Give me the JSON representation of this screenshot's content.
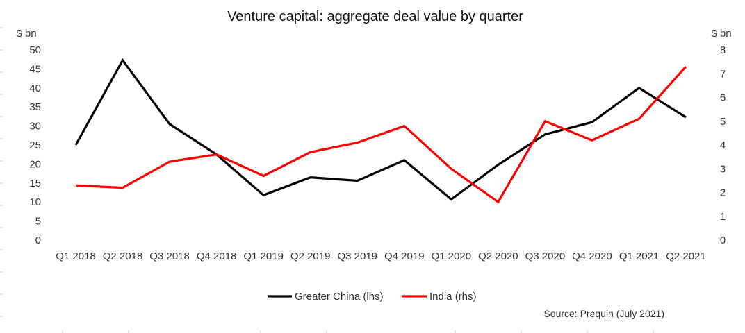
{
  "chart_data": {
    "type": "line",
    "title": "Venture capital: aggregate deal value by quarter",
    "left_axis_unit": "$ bn",
    "right_axis_unit": "$ bn",
    "categories": [
      "Q1 2018",
      "Q2 2018",
      "Q3 2018",
      "Q4 2018",
      "Q1 2019",
      "Q2 2019",
      "Q3 2019",
      "Q4 2019",
      "Q1 2020",
      "Q2 2020",
      "Q3 2020",
      "Q4 2020",
      "Q1 2021",
      "Q2 2021"
    ],
    "y_left": {
      "min": 0,
      "max": 50,
      "ticks": [
        0,
        5,
        10,
        15,
        20,
        25,
        30,
        35,
        40,
        45,
        50
      ]
    },
    "y_right": {
      "min": 0,
      "max": 8,
      "ticks": [
        0,
        1,
        2,
        3,
        4,
        5,
        6,
        7,
        8
      ]
    },
    "series": [
      {
        "name": "Greater China (lhs)",
        "axis": "left",
        "color": "#000000",
        "values": [
          25,
          47.3,
          30.5,
          22.5,
          11.8,
          16.5,
          15.6,
          21,
          10.7,
          19.8,
          27.8,
          31,
          40,
          32.3
        ]
      },
      {
        "name": "India (rhs)",
        "axis": "right",
        "color": "#ff0000",
        "values": [
          2.3,
          2.2,
          3.3,
          3.6,
          2.7,
          3.7,
          4.1,
          4.8,
          3.0,
          1.6,
          5.0,
          4.2,
          5.1,
          7.3
        ]
      }
    ],
    "legend_position": "bottom",
    "source": "Source: Prequin (July 2021)",
    "grid": false
  }
}
